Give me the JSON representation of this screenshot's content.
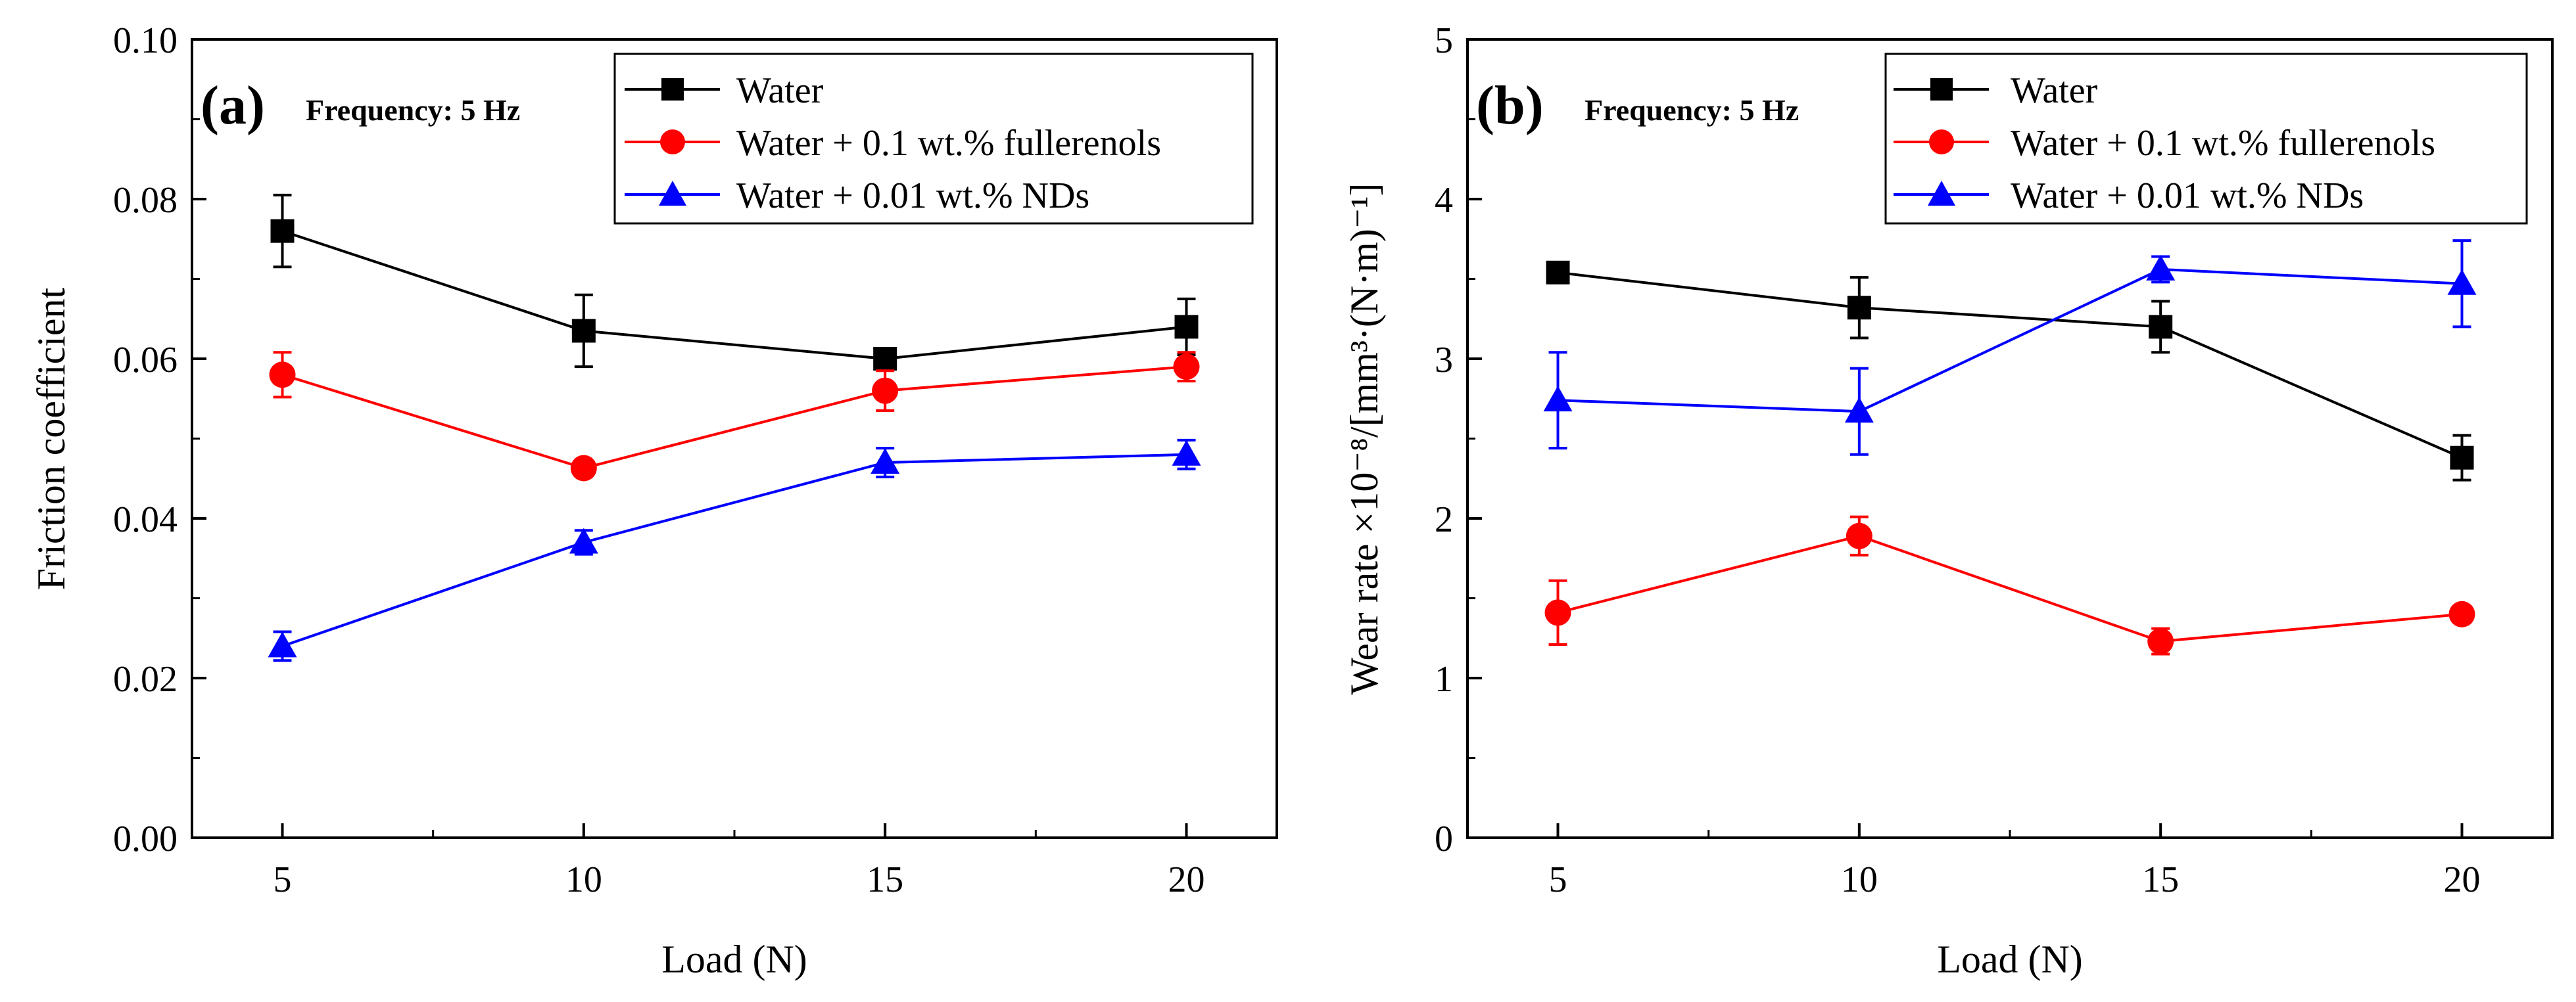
{
  "colors": {
    "water": "#000000",
    "fullerenols": "#ff0000",
    "nds": "#0000ff",
    "axis": "#000000"
  },
  "chart_data": [
    {
      "type": "line",
      "panel_label": "(a)",
      "annotation": "Frequency: 5 Hz",
      "xlabel": "Load (N)",
      "ylabel": "Friction coefficient",
      "xlim": [
        3.5,
        21.5
      ],
      "ylim": [
        0.0,
        0.1
      ],
      "x_ticks": [
        5,
        10,
        15,
        20
      ],
      "x_tick_labels": [
        "5",
        "10",
        "15",
        "20"
      ],
      "y_ticks": [
        0.0,
        0.02,
        0.04,
        0.06,
        0.08,
        0.1
      ],
      "y_tick_labels": [
        "0.00",
        "0.02",
        "0.04",
        "0.06",
        "0.08",
        "0.10"
      ],
      "legend_position": "top-right",
      "series": [
        {
          "name": "Water",
          "marker": "square",
          "color_key": "water",
          "x": [
            5,
            10,
            15,
            20
          ],
          "y": [
            0.076,
            0.0635,
            0.06,
            0.064
          ],
          "err": [
            0.0045,
            0.0045,
            0.0012,
            0.0035
          ]
        },
        {
          "name": "Water + 0.1 wt.% fullerenols",
          "marker": "circle",
          "color_key": "fullerenols",
          "x": [
            5,
            10,
            15,
            20
          ],
          "y": [
            0.058,
            0.0463,
            0.056,
            0.059
          ],
          "err": [
            0.0028,
            0.0008,
            0.0025,
            0.0018
          ]
        },
        {
          "name": "Water + 0.01 wt.% NDs",
          "marker": "triangle",
          "color_key": "nds",
          "x": [
            5,
            10,
            15,
            20
          ],
          "y": [
            0.024,
            0.037,
            0.047,
            0.048
          ],
          "err": [
            0.0018,
            0.0015,
            0.0018,
            0.0018
          ]
        }
      ]
    },
    {
      "type": "line",
      "panel_label": "(b)",
      "annotation": "Frequency: 5 Hz",
      "xlabel": "Load (N)",
      "ylabel": "Wear rate ×10⁻⁸/[mm³·(N·m)⁻¹]",
      "xlim": [
        3.5,
        21.5
      ],
      "ylim": [
        0,
        5
      ],
      "x_ticks": [
        5,
        10,
        15,
        20
      ],
      "x_tick_labels": [
        "5",
        "10",
        "15",
        "20"
      ],
      "y_ticks": [
        0,
        1,
        2,
        3,
        4,
        5
      ],
      "y_tick_labels": [
        "0",
        "1",
        "2",
        "3",
        "4",
        "5"
      ],
      "legend_position": "top-right",
      "series": [
        {
          "name": "Water",
          "marker": "square",
          "color_key": "water",
          "x": [
            5,
            10,
            15,
            20
          ],
          "y": [
            3.54,
            3.32,
            3.2,
            2.38
          ],
          "err": [
            0.06,
            0.19,
            0.16,
            0.14
          ]
        },
        {
          "name": "Water + 0.1 wt.% fullerenols",
          "marker": "circle",
          "color_key": "fullerenols",
          "x": [
            5,
            10,
            15,
            20
          ],
          "y": [
            1.41,
            1.89,
            1.23,
            1.4
          ],
          "err": [
            0.2,
            0.12,
            0.08,
            0.03
          ]
        },
        {
          "name": "Water + 0.01 wt.% NDs",
          "marker": "triangle",
          "color_key": "nds",
          "x": [
            5,
            10,
            15,
            20
          ],
          "y": [
            2.74,
            2.67,
            3.56,
            3.47
          ],
          "err": [
            0.3,
            0.27,
            0.08,
            0.27
          ]
        }
      ]
    }
  ]
}
